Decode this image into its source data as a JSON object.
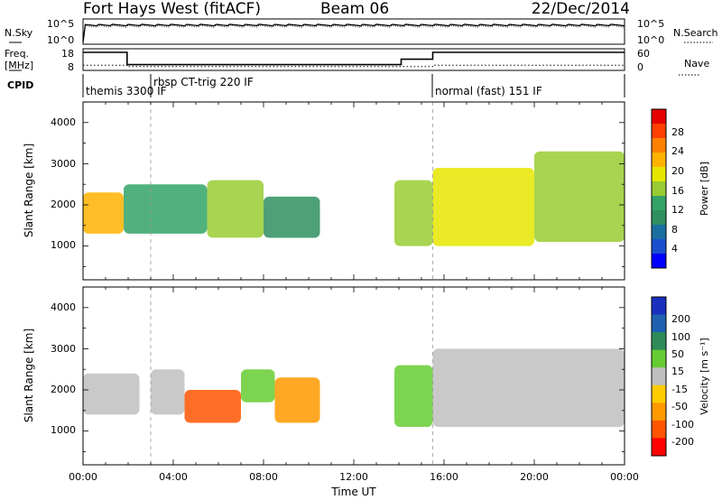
{
  "header": {
    "title": "Fort Hays West (fitACF)",
    "beam": "Beam 06",
    "date": "22/Dec/2014"
  },
  "top_panels": {
    "nsky_label": "N.Sky",
    "nsearch_label": "N.Search",
    "freq_label_line1": "Freq.",
    "freq_label_line2": "[MHz]",
    "nave_label": "Nave",
    "cpid_label": "CPID",
    "nsky_ticks": [
      "10^5",
      "10^0"
    ],
    "nsearch_ticks": [
      "10^5",
      "10^0"
    ],
    "freq_ticks": [
      "18",
      "8"
    ],
    "nave_ticks": [
      "60",
      "0"
    ],
    "cpid_segments": [
      "themis 3300 IF",
      "rbsp CT-trig 220 IF",
      "normal (fast) 151 IF"
    ]
  },
  "panels": {
    "range_ylabel": "Slant Range [km]",
    "y_ticks": [
      "4000",
      "3000",
      "2000",
      "1000"
    ],
    "x_ticks": [
      "00:00",
      "04:00",
      "08:00",
      "12:00",
      "16:00",
      "20:00",
      "00:00"
    ],
    "xlabel": "Time UT"
  },
  "colorbars": {
    "power": {
      "label": "Power [dB]",
      "ticks": [
        "28",
        "24",
        "20",
        "16",
        "12",
        "8",
        "4"
      ],
      "colors": [
        "#e60000",
        "#ff4000",
        "#ff8000",
        "#ffb300",
        "#e6e600",
        "#99cc33",
        "#33a366",
        "#2f8f5f",
        "#1a6fa0",
        "#1a4fd0",
        "#0000ff"
      ]
    },
    "velocity": {
      "label": "Velocity [m s⁻¹]",
      "ticks": [
        "200",
        "100",
        "50",
        "15",
        "-15",
        "-50",
        "-100",
        "-200"
      ],
      "colors": [
        "#1a2fbf",
        "#2060b0",
        "#2e8b57",
        "#66cc33",
        "#bfbfbf",
        "#ffcc00",
        "#ff9900",
        "#ff5500",
        "#ff0000"
      ]
    }
  },
  "chart_data": [
    {
      "type": "line",
      "title": "N.Sky / N.Search",
      "x": [
        0,
        2,
        4,
        6,
        8,
        10,
        12,
        14,
        16,
        18,
        20,
        22,
        24
      ],
      "series": [
        {
          "name": "N.Sky",
          "values": [
            10000,
            10000,
            10000,
            10000,
            10000,
            10000,
            10000,
            10000,
            10000,
            10000,
            10000,
            10000,
            10000
          ]
        },
        {
          "name": "N.Search",
          "values": [
            10000,
            10000,
            10000,
            10000,
            10000,
            10000,
            10000,
            10000,
            10000,
            10000,
            10000,
            10000,
            10000
          ]
        }
      ]
    },
    {
      "type": "line",
      "title": "Freq. / Nave",
      "x": [
        0,
        1.95,
        1.95,
        14.1,
        14.1,
        15.5,
        15.5,
        24
      ],
      "series": [
        {
          "name": "Freq.",
          "values": [
            17.5,
            17.5,
            10.7,
            10.7,
            13.7,
            13.7,
            17.5,
            17.5
          ]
        },
        {
          "name": "Nave",
          "values": [
            14,
            14,
            10,
            10,
            10,
            10,
            14,
            14
          ]
        }
      ]
    },
    {
      "type": "table",
      "title": "CPID",
      "columns": [
        "start_hour",
        "end_hour",
        "label"
      ],
      "rows": [
        [
          0,
          3,
          "themis 3300 IF"
        ],
        [
          3,
          15.5,
          "rbsp CT-trig 220 IF"
        ],
        [
          15.5,
          24,
          "normal (fast) 151 IF"
        ]
      ]
    },
    {
      "type": "heatmap",
      "title": "Power",
      "xlabel": "Time UT",
      "ylabel": "Slant Range [km]",
      "xlim": [
        0,
        24
      ],
      "ylim": [
        180,
        4500
      ],
      "colorbar_label": "Power [dB]",
      "echo_regions": [
        {
          "t0": 0.0,
          "t1": 1.8,
          "r0": 1300,
          "r1": 2300,
          "power": 20
        },
        {
          "t0": 1.8,
          "t1": 5.5,
          "r0": 1300,
          "r1": 2500,
          "power": 12
        },
        {
          "t0": 5.5,
          "t1": 8.0,
          "r0": 1200,
          "r1": 2600,
          "power": 16
        },
        {
          "t0": 8.0,
          "t1": 10.5,
          "r0": 1200,
          "r1": 2200,
          "power": 10
        },
        {
          "t0": 13.8,
          "t1": 15.5,
          "r0": 1000,
          "r1": 2600,
          "power": 14
        },
        {
          "t0": 15.5,
          "t1": 20.0,
          "r0": 1000,
          "r1": 2900,
          "power": 18
        },
        {
          "t0": 20.0,
          "t1": 24.0,
          "r0": 1100,
          "r1": 3300,
          "power": 16
        }
      ]
    },
    {
      "type": "heatmap",
      "title": "Velocity",
      "xlabel": "Time UT",
      "ylabel": "Slant Range [km]",
      "xlim": [
        0,
        24
      ],
      "ylim": [
        180,
        4500
      ],
      "colorbar_label": "Velocity [m s⁻¹]",
      "echo_regions": [
        {
          "t0": 0.0,
          "t1": 2.5,
          "r0": 1400,
          "r1": 2400,
          "velocity": 0
        },
        {
          "t0": 3.0,
          "t1": 4.5,
          "r0": 1400,
          "r1": 2500,
          "velocity": -15
        },
        {
          "t0": 4.5,
          "t1": 7.0,
          "r0": 1200,
          "r1": 2000,
          "velocity": -200
        },
        {
          "t0": 7.0,
          "t1": 8.5,
          "r0": 1700,
          "r1": 2500,
          "velocity": 15
        },
        {
          "t0": 8.5,
          "t1": 10.5,
          "r0": 1200,
          "r1": 2300,
          "velocity": -100
        },
        {
          "t0": 13.8,
          "t1": 15.5,
          "r0": 1100,
          "r1": 2600,
          "velocity": 30
        },
        {
          "t0": 15.5,
          "t1": 24.0,
          "r0": 1100,
          "r1": 3000,
          "velocity": 0
        }
      ]
    }
  ]
}
